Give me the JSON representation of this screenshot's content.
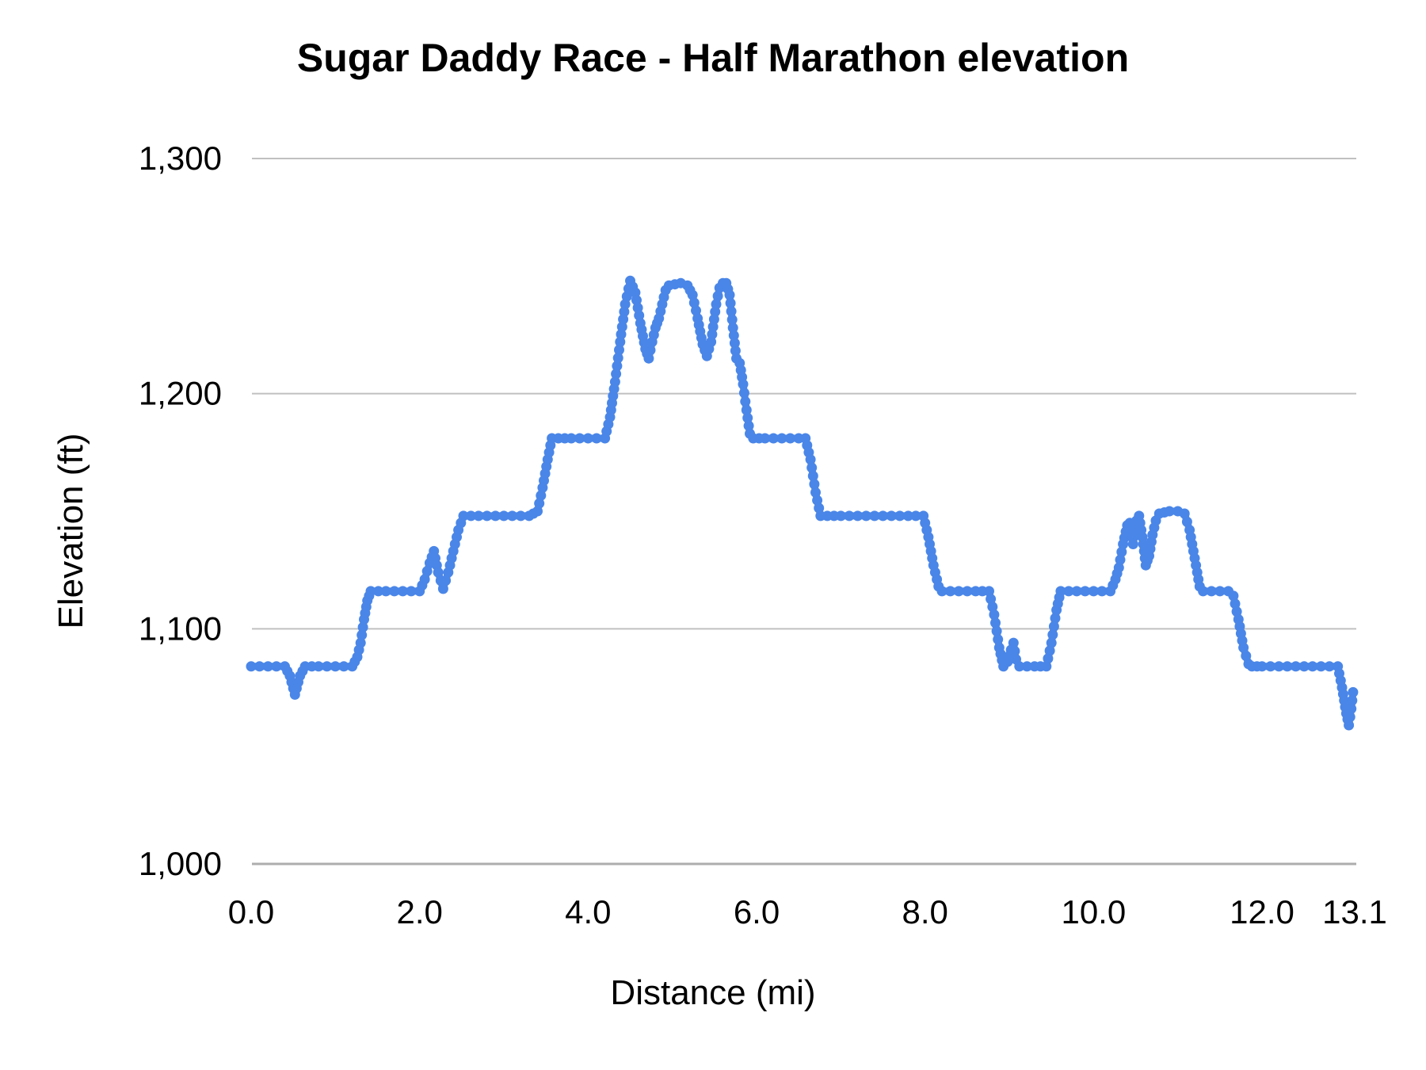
{
  "chart_data": {
    "type": "line",
    "title": "Sugar Daddy Race - Half Marathon elevation",
    "xlabel": "Distance (mi)",
    "ylabel": "Elevation (ft)",
    "xlim": [
      0,
      13.1
    ],
    "ylim": [
      1000,
      1300
    ],
    "grid": "horizontal-only",
    "legend_position": "none",
    "marker": "circle",
    "colors": {
      "line": "#4a86e8",
      "gridline": "#c0c0c0",
      "axis_line": "#adadad",
      "text": "#000000",
      "title_text": "#000000",
      "background": "#ffffff"
    },
    "x_ticks": [
      {
        "value": 0.0,
        "label": "0.0"
      },
      {
        "value": 2.0,
        "label": "2.0"
      },
      {
        "value": 4.0,
        "label": "4.0"
      },
      {
        "value": 6.0,
        "label": "6.0"
      },
      {
        "value": 8.0,
        "label": "8.0"
      },
      {
        "value": 10.0,
        "label": "10.0"
      },
      {
        "value": 12.0,
        "label": "12.0"
      },
      {
        "value": 13.1,
        "label": "13.1"
      }
    ],
    "y_ticks": [
      {
        "value": 1000,
        "label": "1,000"
      },
      {
        "value": 1100,
        "label": "1,100"
      },
      {
        "value": 1200,
        "label": "1,200"
      },
      {
        "value": 1300,
        "label": "1,300"
      }
    ],
    "series": [
      {
        "name": "Elevation",
        "x": [
          0.0,
          0.1,
          0.2,
          0.3,
          0.4,
          0.46,
          0.52,
          0.58,
          0.64,
          0.8,
          1.0,
          1.2,
          1.26,
          1.3,
          1.34,
          1.38,
          1.42,
          1.6,
          1.8,
          2.0,
          2.06,
          2.12,
          2.17,
          2.22,
          2.28,
          2.34,
          2.4,
          2.46,
          2.52,
          2.7,
          2.9,
          3.1,
          3.3,
          3.4,
          3.46,
          3.52,
          3.57,
          3.8,
          4.0,
          4.2,
          4.26,
          4.32,
          4.38,
          4.44,
          4.5,
          4.56,
          4.62,
          4.68,
          4.72,
          4.76,
          4.8,
          4.84,
          4.88,
          4.92,
          4.96,
          5.1,
          5.18,
          5.24,
          5.3,
          5.36,
          5.41,
          5.46,
          5.52,
          5.56,
          5.6,
          5.64,
          5.68,
          5.72,
          5.76,
          5.8,
          5.84,
          5.88,
          5.92,
          5.96,
          6.1,
          6.3,
          6.5,
          6.58,
          6.64,
          6.7,
          6.76,
          7.0,
          7.2,
          7.4,
          7.6,
          7.8,
          7.98,
          8.04,
          8.1,
          8.16,
          8.2,
          8.4,
          8.6,
          8.76,
          8.82,
          8.88,
          8.93,
          8.98,
          9.02,
          9.05,
          9.08,
          9.12,
          9.3,
          9.44,
          9.5,
          9.56,
          9.61,
          9.8,
          10.0,
          10.2,
          10.26,
          10.3,
          10.35,
          10.4,
          10.43,
          10.47,
          10.51,
          10.54,
          10.58,
          10.62,
          10.66,
          10.7,
          10.74,
          10.78,
          10.9,
          11.0,
          11.08,
          11.14,
          11.2,
          11.26,
          11.3,
          11.4,
          11.5,
          11.6,
          11.66,
          11.72,
          11.78,
          11.84,
          11.88,
          12.0,
          12.2,
          12.4,
          12.6,
          12.8,
          12.9,
          12.95,
          13.0,
          13.03,
          13.06,
          13.08
        ],
        "y": [
          1084,
          1084,
          1084,
          1084,
          1084,
          1080,
          1072,
          1080,
          1084,
          1084,
          1084,
          1084,
          1088,
          1094,
          1104,
          1112,
          1116,
          1116,
          1116,
          1116,
          1121,
          1128,
          1133,
          1124,
          1117,
          1124,
          1133,
          1142,
          1148,
          1148,
          1148,
          1148,
          1148,
          1150,
          1160,
          1172,
          1181,
          1181,
          1181,
          1181,
          1190,
          1205,
          1222,
          1238,
          1248,
          1243,
          1230,
          1219,
          1215,
          1222,
          1228,
          1232,
          1238,
          1244,
          1246,
          1247,
          1246,
          1242,
          1232,
          1221,
          1216,
          1222,
          1238,
          1245,
          1247,
          1247,
          1242,
          1228,
          1215,
          1213,
          1204,
          1193,
          1183,
          1181,
          1181,
          1181,
          1181,
          1181,
          1172,
          1158,
          1148,
          1148,
          1148,
          1148,
          1148,
          1148,
          1148,
          1139,
          1127,
          1118,
          1116,
          1116,
          1116,
          1116,
          1106,
          1092,
          1084,
          1086,
          1091,
          1094,
          1087,
          1084,
          1084,
          1084,
          1094,
          1108,
          1116,
          1116,
          1116,
          1116,
          1121,
          1126,
          1136,
          1144,
          1145,
          1136,
          1146,
          1148,
          1139,
          1127,
          1131,
          1140,
          1146,
          1149,
          1150,
          1150,
          1149,
          1142,
          1130,
          1118,
          1116,
          1116,
          1116,
          1116,
          1114,
          1104,
          1092,
          1085,
          1084,
          1084,
          1084,
          1084,
          1084,
          1084,
          1084,
          1075,
          1064,
          1059,
          1066,
          1073
        ]
      }
    ]
  }
}
